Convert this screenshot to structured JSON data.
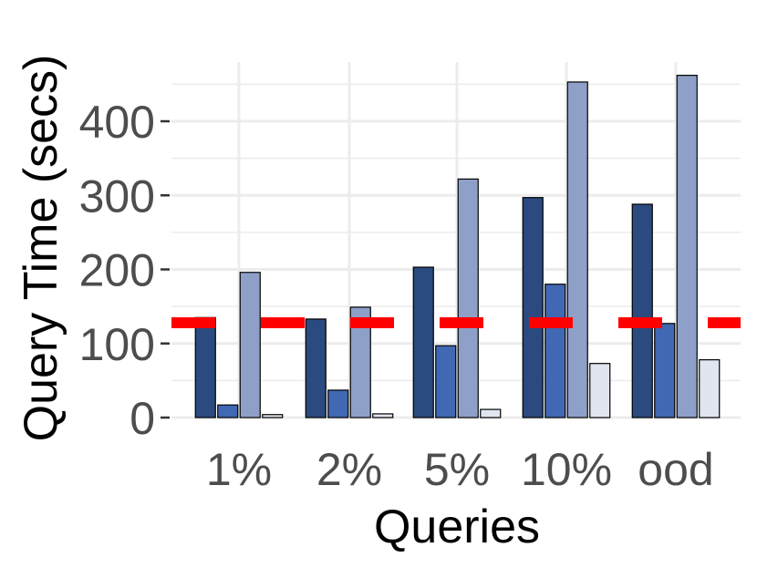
{
  "chart_data": {
    "type": "bar",
    "xlabel": "Queries",
    "ylabel": "Query Time (secs)",
    "categories": [
      "1%",
      "2%",
      "5%",
      "10%",
      "ood"
    ],
    "series": [
      {
        "values": [
          135,
          133,
          203,
          297,
          288
        ],
        "color": "#2b4a7f"
      },
      {
        "values": [
          17,
          37,
          97,
          180,
          127
        ],
        "color": "#4068b3"
      },
      {
        "values": [
          196,
          149,
          322,
          453,
          462
        ],
        "color": "#8ea0c8"
      },
      {
        "values": [
          4,
          5,
          11,
          73,
          78
        ],
        "color": "#e0e5ef"
      }
    ],
    "reference_line": {
      "value": 128,
      "color": "#ff0000",
      "style": "dashed"
    },
    "ylim": [
      0,
      480
    ],
    "yticks": [
      0,
      100,
      200,
      300,
      400
    ],
    "grid": true,
    "bar_outline_color": "#000000"
  }
}
